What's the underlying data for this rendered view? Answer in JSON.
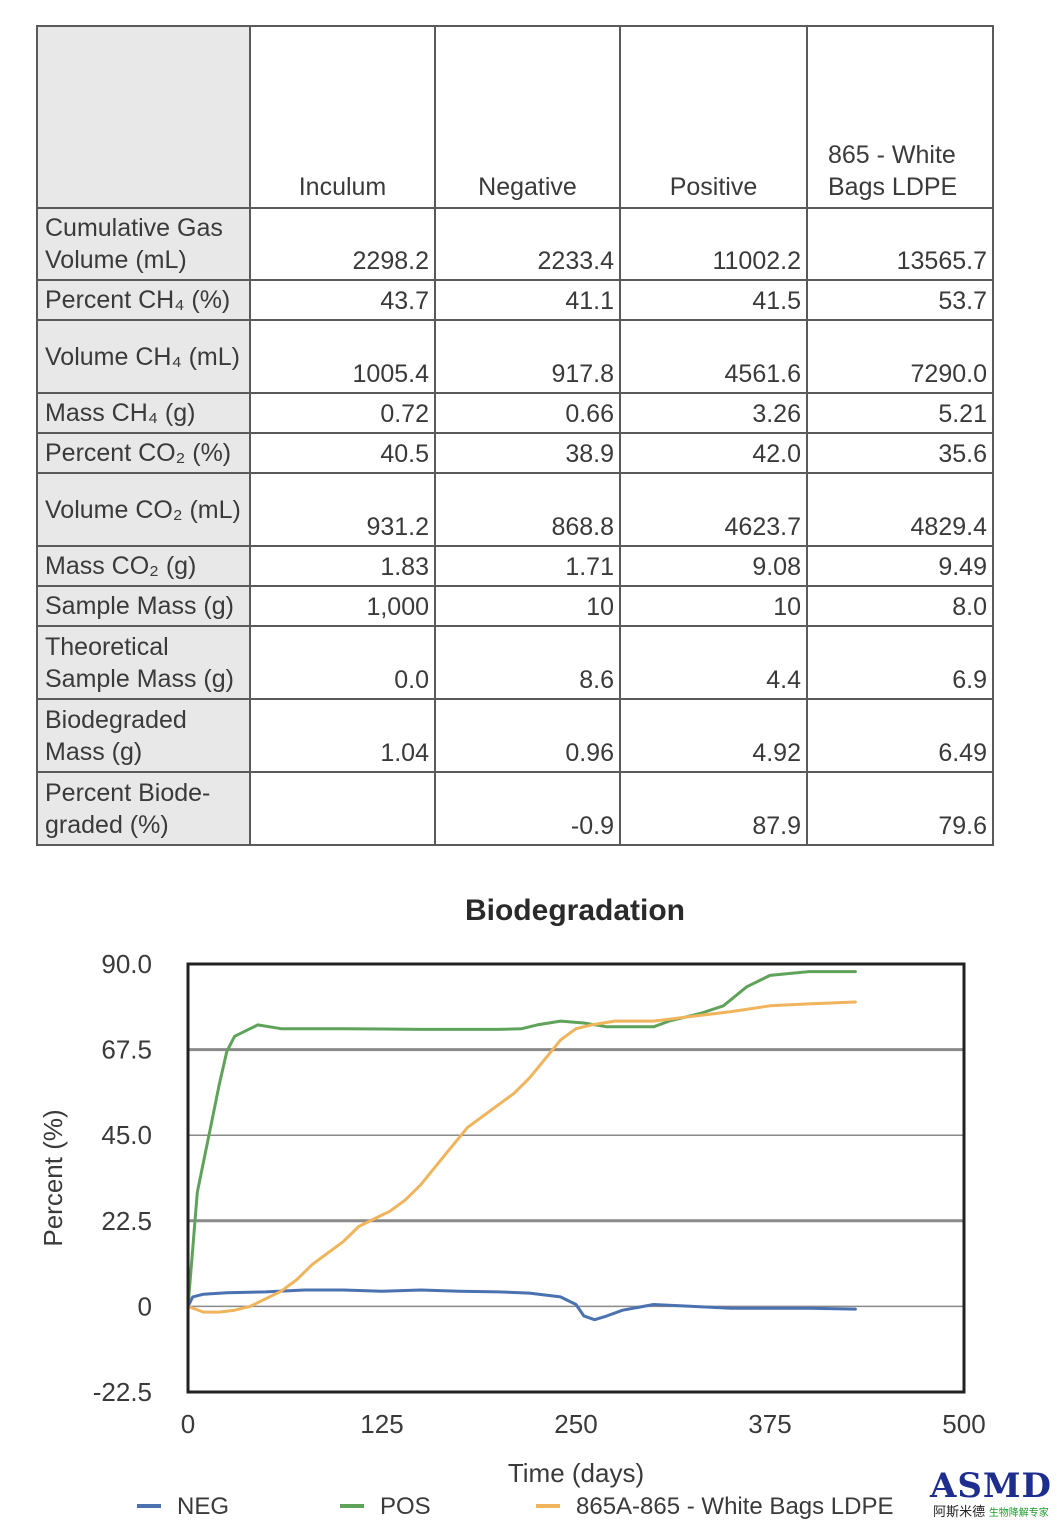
{
  "table": {
    "columns": [
      "Inculum",
      "Negative",
      "Positive",
      "865 - White Bags LDPE"
    ],
    "rows": [
      {
        "label": "Cumulative Gas Volume (mL)",
        "values": [
          "2298.2",
          "2233.4",
          "11002.2",
          "13565.7"
        ]
      },
      {
        "label": "Percent CH₄ (%)",
        "values": [
          "43.7",
          "41.1",
          "41.5",
          "53.7"
        ]
      },
      {
        "label": "Volume CH₄ (mL)",
        "values": [
          "1005.4",
          "917.8",
          "4561.6",
          "7290.0"
        ]
      },
      {
        "label": "Mass CH₄ (g)",
        "values": [
          "0.72",
          "0.66",
          "3.26",
          "5.21"
        ]
      },
      {
        "label": "Percent CO₂ (%)",
        "values": [
          "40.5",
          "38.9",
          "42.0",
          "35.6"
        ]
      },
      {
        "label": "Volume CO₂ (mL)",
        "values": [
          "931.2",
          "868.8",
          "4623.7",
          "4829.4"
        ]
      },
      {
        "label": "Mass CO₂ (g)",
        "values": [
          "1.83",
          "1.71",
          "9.08",
          "9.49"
        ]
      },
      {
        "label": "Sample Mass (g)",
        "values": [
          "1,000",
          "10",
          "10",
          "8.0"
        ]
      },
      {
        "label": "Theoretical Sample Mass (g)",
        "values": [
          "0.0",
          "8.6",
          "4.4",
          "6.9"
        ]
      },
      {
        "label": "Biodegraded Mass (g)",
        "values": [
          "1.04",
          "0.96",
          "4.92",
          "6.49"
        ]
      },
      {
        "label": "Percent Biode-graded (%)",
        "values": [
          "",
          "-0.9",
          "87.9",
          "79.6"
        ]
      }
    ]
  },
  "chart_data": {
    "type": "line",
    "title": "Biodegradation",
    "xlabel": "Time (days)",
    "ylabel": "Percent (%)",
    "xlim": [
      0,
      500
    ],
    "ylim": [
      -22.5,
      90
    ],
    "xticks": [
      "0",
      "125",
      "250",
      "375",
      "500"
    ],
    "yticks": [
      "90.0",
      "67.5",
      "45.0",
      "22.5",
      "0",
      "-22.5"
    ],
    "ytick_values": [
      90,
      67.5,
      45,
      22.5,
      0,
      -22.5
    ],
    "grid": "horizontal",
    "legend_position": "bottom",
    "series": [
      {
        "name": "NEG",
        "color": "#4a72b0",
        "points": [
          [
            0,
            0
          ],
          [
            3,
            2.5
          ],
          [
            10,
            3.2
          ],
          [
            25,
            3.6
          ],
          [
            50,
            3.8
          ],
          [
            75,
            4.3
          ],
          [
            100,
            4.3
          ],
          [
            125,
            4.0
          ],
          [
            150,
            4.3
          ],
          [
            175,
            4.0
          ],
          [
            200,
            3.8
          ],
          [
            220,
            3.5
          ],
          [
            240,
            2.5
          ],
          [
            250,
            0.5
          ],
          [
            255,
            -2.5
          ],
          [
            262,
            -3.5
          ],
          [
            270,
            -2.5
          ],
          [
            280,
            -1
          ],
          [
            300,
            0.5
          ],
          [
            325,
            0
          ],
          [
            350,
            -0.5
          ],
          [
            375,
            -0.5
          ],
          [
            400,
            -0.5
          ],
          [
            430,
            -0.7
          ]
        ]
      },
      {
        "name": "POS",
        "color": "#5fa35a",
        "points": [
          [
            0,
            0
          ],
          [
            3,
            15
          ],
          [
            6,
            30
          ],
          [
            10,
            38
          ],
          [
            15,
            48
          ],
          [
            20,
            58
          ],
          [
            25,
            67
          ],
          [
            30,
            71
          ],
          [
            40,
            73
          ],
          [
            45,
            74
          ],
          [
            60,
            73
          ],
          [
            100,
            73
          ],
          [
            150,
            72.8
          ],
          [
            200,
            72.8
          ],
          [
            215,
            73
          ],
          [
            225,
            74
          ],
          [
            240,
            75
          ],
          [
            255,
            74.5
          ],
          [
            270,
            73.5
          ],
          [
            300,
            73.5
          ],
          [
            310,
            75
          ],
          [
            330,
            77
          ],
          [
            345,
            79
          ],
          [
            360,
            84
          ],
          [
            375,
            87
          ],
          [
            400,
            88
          ],
          [
            430,
            88
          ]
        ]
      },
      {
        "name": "865A-865 - White Bags LDPE",
        "color": "#f0b45c",
        "points": [
          [
            0,
            0
          ],
          [
            10,
            -1.5
          ],
          [
            20,
            -1.5
          ],
          [
            30,
            -1
          ],
          [
            40,
            0
          ],
          [
            50,
            2
          ],
          [
            60,
            4
          ],
          [
            70,
            7
          ],
          [
            80,
            11
          ],
          [
            90,
            14
          ],
          [
            100,
            17
          ],
          [
            110,
            21
          ],
          [
            120,
            23
          ],
          [
            130,
            25
          ],
          [
            140,
            28
          ],
          [
            150,
            32
          ],
          [
            160,
            37
          ],
          [
            170,
            42
          ],
          [
            180,
            47
          ],
          [
            190,
            50
          ],
          [
            200,
            53
          ],
          [
            210,
            56
          ],
          [
            220,
            60
          ],
          [
            230,
            65
          ],
          [
            240,
            70
          ],
          [
            250,
            73
          ],
          [
            260,
            74
          ],
          [
            275,
            75
          ],
          [
            300,
            75
          ],
          [
            320,
            76
          ],
          [
            350,
            77.5
          ],
          [
            375,
            79
          ],
          [
            400,
            79.5
          ],
          [
            430,
            80
          ]
        ]
      }
    ]
  },
  "logo": {
    "brand": "ASMD",
    "subtitle": "阿斯米德",
    "tagline": "生物降解专家",
    "color": "#1d2e8f",
    "tagline_color": "#1c9a2c"
  }
}
